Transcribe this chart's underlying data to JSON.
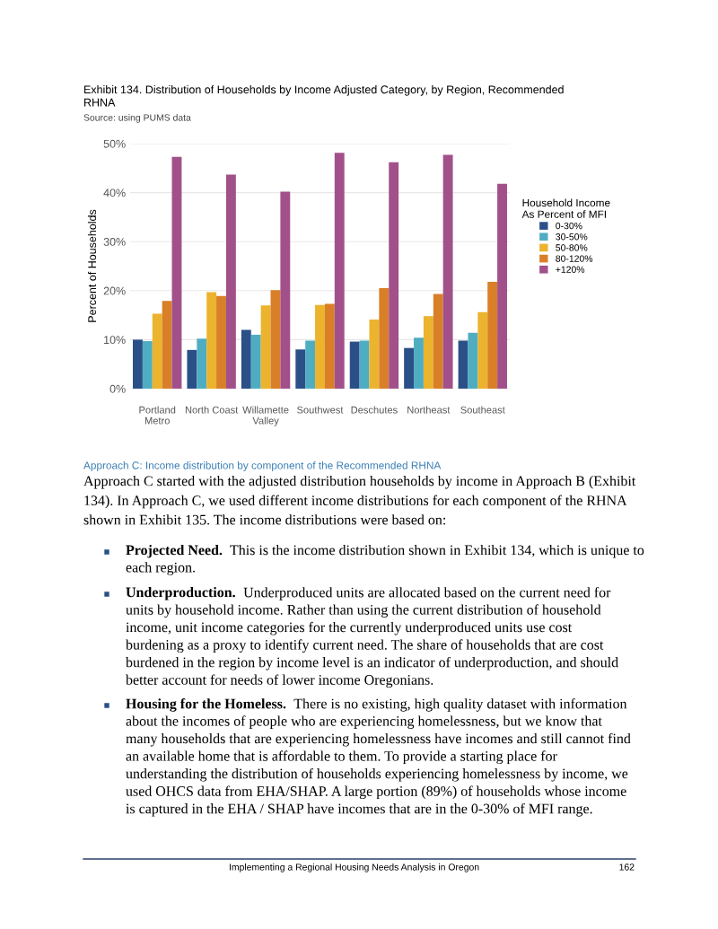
{
  "chart_data": {
    "type": "bar",
    "title": "Exhibit 134. Distribution of Households by Income Adjusted Category, by Region, Recommended\nRHNA",
    "subtitle": "Source: using PUMS data",
    "ylabel": "Percent of Households",
    "legend_title": "Household Income\nAs Percent of MFI",
    "categories": [
      "Portland\nMetro",
      "North Coast",
      "Willamette\nValley",
      "Southwest",
      "Deschutes",
      "Northeast",
      "Southeast"
    ],
    "series": [
      {
        "name": "0-30%",
        "color": "#2b5088",
        "values": [
          10.0,
          7.9,
          12.0,
          8.0,
          9.6,
          8.3,
          9.8
        ]
      },
      {
        "name": "30-50%",
        "color": "#4fadc2",
        "values": [
          9.7,
          10.2,
          11.0,
          9.8,
          9.8,
          10.4,
          11.4
        ]
      },
      {
        "name": "50-80%",
        "color": "#ebb32e",
        "values": [
          15.3,
          19.7,
          17.0,
          17.1,
          14.1,
          14.8,
          15.6
        ]
      },
      {
        "name": "80-120%",
        "color": "#d97f28",
        "values": [
          17.9,
          18.9,
          20.1,
          17.3,
          20.5,
          19.3,
          21.8
        ]
      },
      {
        "name": "+120%",
        "color": "#a2508a",
        "values": [
          47.3,
          43.7,
          40.2,
          48.1,
          46.2,
          47.7,
          41.8
        ]
      }
    ],
    "ylim": [
      0,
      50
    ],
    "yticks": [
      {
        "value": 0,
        "label": "0%"
      },
      {
        "value": 10,
        "label": "10%"
      },
      {
        "value": 20,
        "label": "20%"
      },
      {
        "value": 30,
        "label": "30%"
      },
      {
        "value": 40,
        "label": "40%"
      },
      {
        "value": 50,
        "label": "50%"
      }
    ],
    "grid": "y",
    "legend": "right",
    "annotations": [
      "Approach C: Income distribution by component of the Recommended RHNA",
      "Approach C started with the adjusted distribution households by income in Approach B (Exhibit\n134). In Approach C, we used different income distributions for each component of the RHNA\nshown in Exhibit 135. The income distributions were based on:",
      "Projected Need.",
      "This is the income distribution shown in Exhibit 134, which is unique to\neach region.",
      "Underproduction.",
      "Underproduced units are allocated based on the current need for\nunits by household income. Rather than using the current distribution of household\nincome, unit income categories for the currently underproduced units use cost\nburdening as a proxy to identify current need. The share of households that are cost\nburdened in the region by income level is an indicator of underproduction, and should\nbetter account for needs of lower income Oregonians.",
      "Housing for the Homeless.",
      "There is no existing, high quality dataset with information\nabout the incomes of people who are experiencing homelessness, but we know that\nmany households that are experiencing homelessness have incomes and still cannot find\nan available home that is affordable to them. To provide a starting place for\nunderstanding the distribution of households experiencing homelessness by income, we\nused OHCS data from EHA/SHAP. A large portion (89%) of households whose income\nis captured in the EHA / SHAP have incomes that are in the 0-30% of MFI range.",
      "Implementing a Regional Housing Needs Analysis in Oregon",
      "162"
    ]
  }
}
